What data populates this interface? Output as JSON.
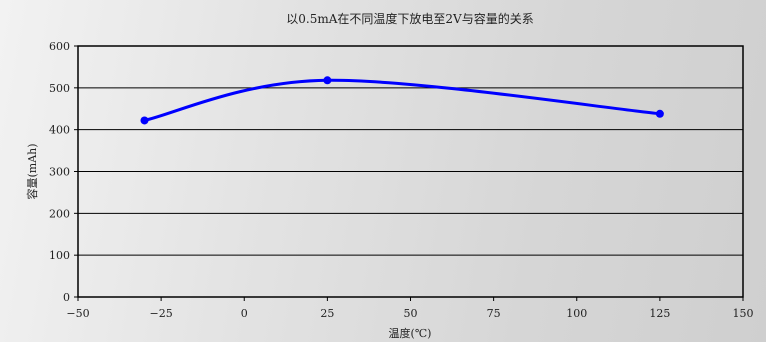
{
  "chart_data": {
    "type": "line",
    "title": "以0.5mA在不同温度下放电至2V与容量的关系",
    "xlabel": "温度(℃)",
    "ylabel": "容量(mAh)",
    "xlim": [
      -50,
      150
    ],
    "ylim": [
      0,
      600
    ],
    "x_ticks": [
      -50,
      -25,
      0,
      25,
      50,
      75,
      100,
      125,
      150
    ],
    "y_ticks": [
      0,
      100,
      200,
      300,
      400,
      500,
      600
    ],
    "x_tick_labels": [
      "−50",
      "−25",
      "0",
      "25",
      "50",
      "75",
      "100",
      "125",
      "150"
    ],
    "y_tick_labels": [
      "0",
      "100",
      "200",
      "300",
      "400",
      "500",
      "600"
    ],
    "grid": "horizontal",
    "series": [
      {
        "x": [
          -30,
          25,
          125
        ],
        "y": [
          422,
          518,
          438
        ],
        "color": "#0000ff",
        "smooth": true
      }
    ]
  }
}
